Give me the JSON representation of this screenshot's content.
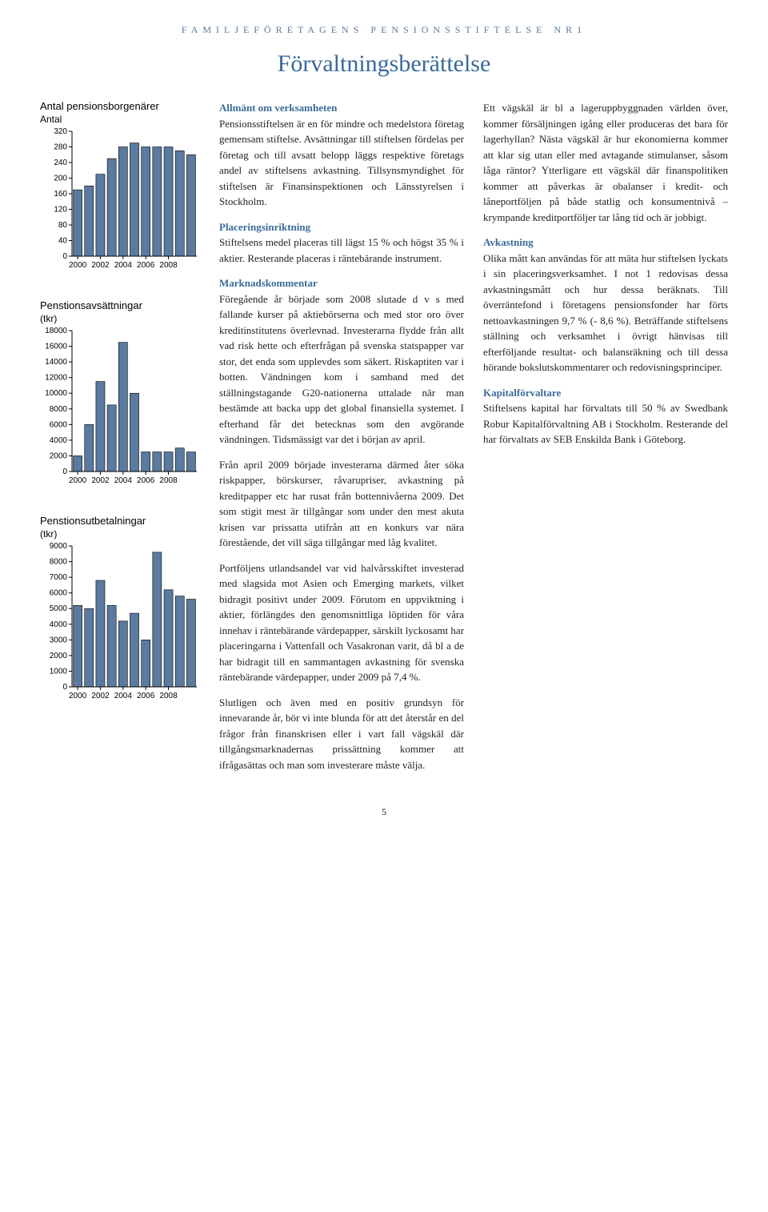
{
  "header": "FAMILJEFÖRETAGENS PENSIONSSTIFTELSE NR1",
  "title": "Förvaltningsberättelse",
  "page_number": "5",
  "charts": {
    "chart1": {
      "type": "bar",
      "title": "Antal pensionsborgenärer",
      "unit": "Antal",
      "yticks": [
        0,
        40,
        80,
        120,
        160,
        200,
        240,
        280,
        320
      ],
      "y_max": 320,
      "xticks": [
        "2000",
        "2002",
        "2004",
        "2006",
        "2008"
      ],
      "values": [
        170,
        180,
        210,
        250,
        280,
        290,
        280,
        280,
        280,
        270,
        260
      ],
      "bar_color": "#5b7aa0",
      "bar_border": "#000000",
      "axis_color": "#000000",
      "background": "#ffffff",
      "tick_font_size": 10
    },
    "chart2": {
      "type": "bar",
      "title": "Penstionsavsättningar",
      "unit": "(tkr)",
      "yticks": [
        0,
        2000,
        4000,
        6000,
        8000,
        10000,
        12000,
        14000,
        16000,
        18000
      ],
      "y_max": 18000,
      "xticks": [
        "2000",
        "2002",
        "2004",
        "2006",
        "2008"
      ],
      "values": [
        2000,
        6000,
        11500,
        8500,
        16500,
        10000,
        2500,
        2500,
        2500,
        3000,
        2500
      ],
      "bar_color": "#5b7aa0",
      "bar_border": "#000000",
      "axis_color": "#000000",
      "background": "#ffffff",
      "tick_font_size": 10
    },
    "chart3": {
      "type": "bar",
      "title": "Penstionsutbetalningar",
      "unit": "(tkr)",
      "yticks": [
        0,
        1000,
        2000,
        3000,
        4000,
        5000,
        6000,
        7000,
        8000,
        9000
      ],
      "y_max": 9000,
      "xticks": [
        "2000",
        "2002",
        "2004",
        "2006",
        "2008"
      ],
      "values": [
        5200,
        5000,
        6800,
        5200,
        4200,
        4700,
        3000,
        8600,
        6200,
        5800,
        5600
      ],
      "bar_color": "#5b7aa0",
      "bar_border": "#000000",
      "axis_color": "#000000",
      "background": "#ffffff",
      "tick_font_size": 10
    }
  },
  "sections": {
    "s1_head": "Allmänt om verksamheten",
    "s1_p1": "Pensionsstiftelsen är en för mindre och medelstora företag gemensam stiftelse. Avsättningar till stiftelsen fördelas per företag och till avsatt belopp läggs respektive företags andel av stiftelsens avkastning. Tillsynsmyndighet för stiftelsen är Finansinspektionen och Länsstyrelsen i Stockholm.",
    "s2_head": "Placeringsinriktning",
    "s2_p1": "Stiftelsens medel placeras till lägst 15 % och högst 35 % i aktier. Resterande placeras i räntebärande instrument.",
    "s3_head": "Marknadskommentar",
    "s3_p1": "Föregående år började som 2008 slutade d v s med fallande kurser på aktiebörserna och med stor oro över kreditinstitutens överlevnad. Investerarna flydde från allt vad risk hette och efterfrågan på svenska statspapper var stor, det enda som upplevdes som säkert. Riskaptiten var i botten. Vändningen kom i samband med det ställningstagande G20-nationerna uttalade när man bestämde att backa upp det global finansiella systemet. I efterhand får det betecknas som den avgörande vändningen. Tidsmässigt var det i början av april.",
    "s3_p2": "Från april 2009 började investerarna därmed åter söka riskpapper, börskurser, råvarupriser, avkastning på kreditpapper etc har rusat från bottennivåerna 2009. Det som stigit mest är tillgångar som under den mest akuta krisen var prissatta utifrån att en konkurs var nära förestående, det vill säga tillgångar med låg kvalitet.",
    "s3_p3": "Portföljens utlandsandel var vid halvårsskiftet investerad med slagsida mot Asien och Emerging markets, vilket bidragit positivt under 2009. Förutom en uppviktning i aktier, förlängdes den genomsnittliga löptiden för våra innehav i räntebärande värdepapper, särskilt lyckosamt har placeringarna i Vattenfall och Vasakronan varit, då bl a de har bidragit till en sammantagen avkastning för svenska räntebärande värdepapper, under 2009 på 7,4 %.",
    "s3_p4": "Slutligen och även med en positiv grundsyn för innevarande år, bör vi inte blunda för att det återstår en del frågor från finanskrisen eller i vart fall vägskäl där tillgångsmarknadernas prissättning kommer att ifrågasättas och man som investerare måste välja.",
    "s4_p1": "Ett vägskäl är bl a lageruppbyggnaden världen över, kommer försäljningen igång eller produceras det bara för lagerhyllan? Nästa vägskäl är hur ekonomierna kommer att klar sig utan eller med avtagande stimulanser, såsom låga räntor? Ytterligare ett vägskäl där finanspolitiken kommer att påverkas är obalanser i kredit- och låneportföljen på både statlig och konsumentnivå – krympande kreditportföljer tar lång tid och är jobbigt.",
    "s5_head": "Avkastning",
    "s5_p1": "Olika mått kan användas för att mäta hur stiftelsen lyckats i sin placeringsverksamhet. I not 1 redovisas dessa avkastningsmått och hur dessa beräknats. Till överräntefond i företagens pensionsfonder har förts nettoavkastningen 9,7 % (- 8,6 %). Beträffande stiftelsens ställning och verksamhet i övrigt hänvisas till efterföljande resultat- och balansräkning och till dessa hörande bokslutskommentarer och redovisningsprinciper.",
    "s6_head": "Kapitalförvaltare",
    "s6_p1": "Stiftelsens kapital har förvaltats till 50 % av Swedbank Robur Kapitalförvaltning AB i Stockholm. Resterande del har förvaltats av SEB Enskilda Bank i Göteborg."
  }
}
